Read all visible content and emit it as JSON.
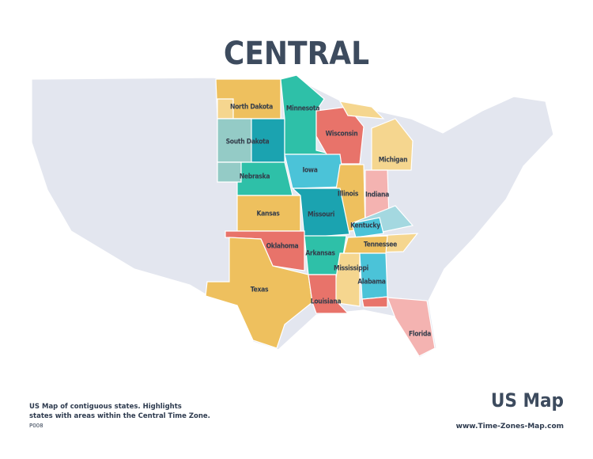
{
  "title": "CENTRAL",
  "states": [
    {
      "label": "North Dakota"
    },
    {
      "label": "South Dakota"
    },
    {
      "label": "Minnesota"
    },
    {
      "label": "Wisconsin"
    },
    {
      "label": "Michigan"
    },
    {
      "label": "Iowa"
    },
    {
      "label": "Nebraska"
    },
    {
      "label": "Illinois"
    },
    {
      "label": "Indiana"
    },
    {
      "label": "Kansas"
    },
    {
      "label": "Missouri"
    },
    {
      "label": "Kentucky"
    },
    {
      "label": "Oklahoma"
    },
    {
      "label": "Arkansas"
    },
    {
      "label": "Tennessee"
    },
    {
      "label": "Mississippi"
    },
    {
      "label": "Alabama"
    },
    {
      "label": "Texas"
    },
    {
      "label": "Louisiana"
    },
    {
      "label": "Florida"
    }
  ],
  "footer": {
    "description": [
      "US Map of contiguous states. Highlights",
      "states  with areas within the Central Time Zone."
    ],
    "code": "P008",
    "brand": "US Map",
    "url": "www.Time-Zones-Map.com"
  }
}
